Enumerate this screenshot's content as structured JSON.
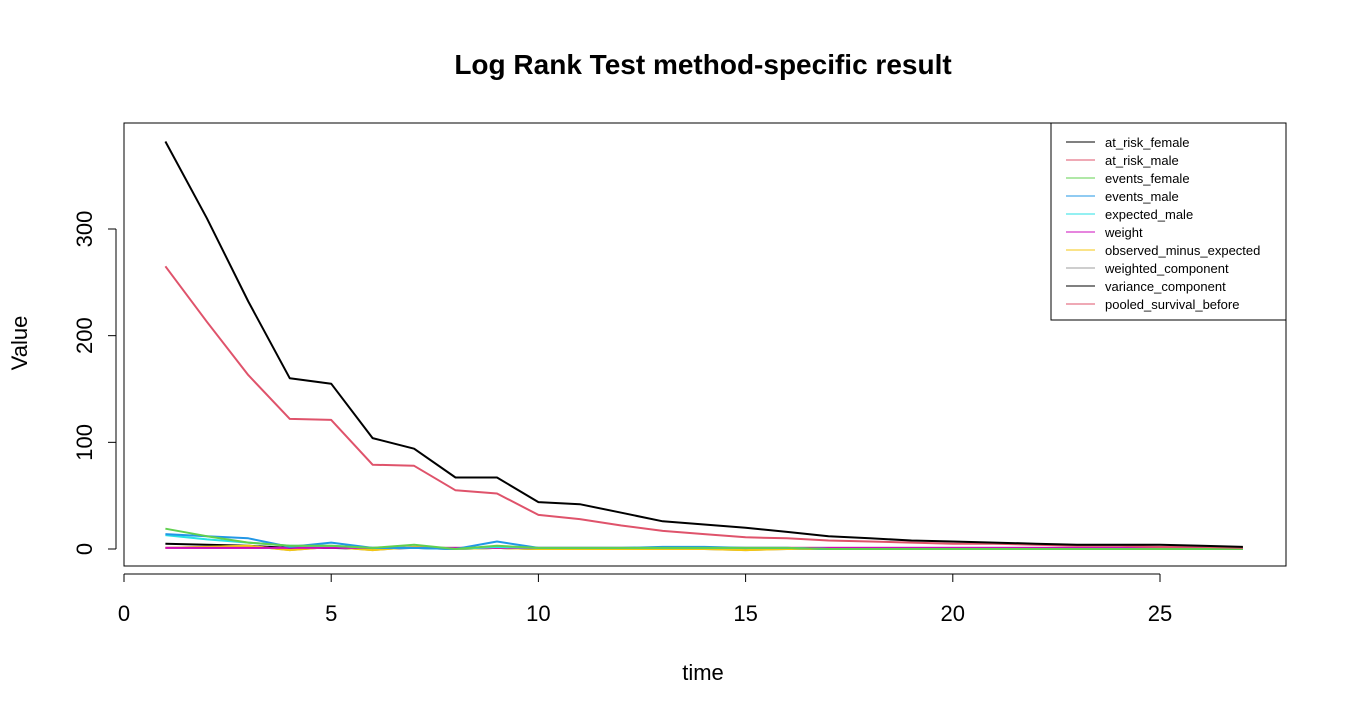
{
  "chart_data": {
    "type": "line",
    "title": "Log Rank Test method-specific result",
    "xlabel": "time",
    "ylabel": "Value",
    "xlim": [
      0,
      27
    ],
    "ylim": [
      0,
      380
    ],
    "x_ticks": [
      0,
      5,
      10,
      15,
      20,
      25
    ],
    "y_ticks": [
      0,
      100,
      200,
      300
    ],
    "grid": false,
    "legend_position": "top-right",
    "x": [
      1,
      2,
      3,
      4,
      5,
      6,
      7,
      8,
      9,
      10,
      11,
      12,
      13,
      14,
      15,
      16,
      17,
      18,
      19,
      20,
      21,
      22,
      23,
      24,
      25,
      26,
      27
    ],
    "series": [
      {
        "name": "at_risk_female",
        "color": "#000000",
        "values": [
          382,
          310,
          232,
          160,
          155,
          104,
          94,
          67,
          67,
          44,
          42,
          34,
          26,
          23,
          20,
          16,
          12,
          10,
          8,
          7,
          6,
          5,
          4,
          4,
          4,
          3,
          2
        ]
      },
      {
        "name": "at_risk_male",
        "color": "#DF536B",
        "values": [
          265,
          213,
          163,
          122,
          121,
          79,
          78,
          55,
          52,
          32,
          28,
          22,
          17,
          14,
          11,
          10,
          8,
          7,
          6,
          5,
          5,
          4,
          3,
          3,
          2,
          2,
          1
        ]
      },
      {
        "name": "events_female",
        "color": "#61D04F",
        "values": [
          19,
          12,
          6,
          3,
          3,
          1,
          4,
          0,
          3,
          1,
          1,
          1,
          1,
          1,
          1,
          1,
          0,
          0,
          0,
          0,
          0,
          0,
          0,
          0,
          0,
          0,
          0
        ]
      },
      {
        "name": "events_male",
        "color": "#2297E6",
        "values": [
          14,
          12,
          10,
          2,
          6,
          1,
          1,
          0,
          7,
          1,
          1,
          1,
          2,
          2,
          1,
          1,
          0,
          0,
          0,
          0,
          0,
          0,
          0,
          0,
          0,
          0,
          0
        ]
      },
      {
        "name": "expected_male",
        "color": "#28E2E5",
        "values": [
          13,
          9,
          6,
          3,
          3,
          1,
          1,
          0,
          2,
          1,
          1,
          1,
          1,
          1,
          1,
          1,
          0,
          0,
          0,
          0,
          0,
          0,
          0,
          0,
          0,
          0,
          0
        ]
      },
      {
        "name": "weight",
        "color": "#CD0BBC",
        "values": [
          1,
          1,
          1,
          1,
          1,
          1,
          1,
          1,
          1,
          1,
          1,
          1,
          1,
          1,
          1,
          1,
          1,
          1,
          1,
          1,
          1,
          1,
          1,
          1,
          1,
          1,
          1
        ]
      },
      {
        "name": "observed_minus_expected",
        "color": "#F5C710",
        "values": [
          1,
          2,
          3,
          -1,
          2,
          -1,
          2,
          0,
          1,
          0,
          0,
          0,
          0,
          0,
          -1,
          0,
          0,
          0,
          0,
          0,
          0,
          0,
          0,
          0,
          0,
          0,
          0
        ]
      },
      {
        "name": "weighted_component",
        "color": "#9E9E9E",
        "values": [
          1,
          2,
          3,
          -1,
          2,
          -1,
          2,
          0,
          1,
          0,
          0,
          0,
          0,
          0,
          -1,
          0,
          0,
          0,
          0,
          0,
          0,
          0,
          0,
          0,
          0,
          0,
          0
        ]
      },
      {
        "name": "variance_component",
        "color": "#000000",
        "values": [
          5,
          4,
          3,
          1,
          1,
          0,
          1,
          0,
          1,
          0,
          0,
          0,
          0,
          0,
          0,
          0,
          0,
          0,
          0,
          0,
          0,
          0,
          0,
          0,
          0,
          0,
          0
        ]
      },
      {
        "name": "pooled_survival_before",
        "color": "#DF536B",
        "values": [
          1,
          1,
          1,
          1,
          1,
          1,
          1,
          1,
          1,
          1,
          1,
          1,
          1,
          1,
          1,
          1,
          1,
          1,
          1,
          1,
          1,
          1,
          1,
          1,
          1,
          1,
          1
        ]
      }
    ]
  }
}
